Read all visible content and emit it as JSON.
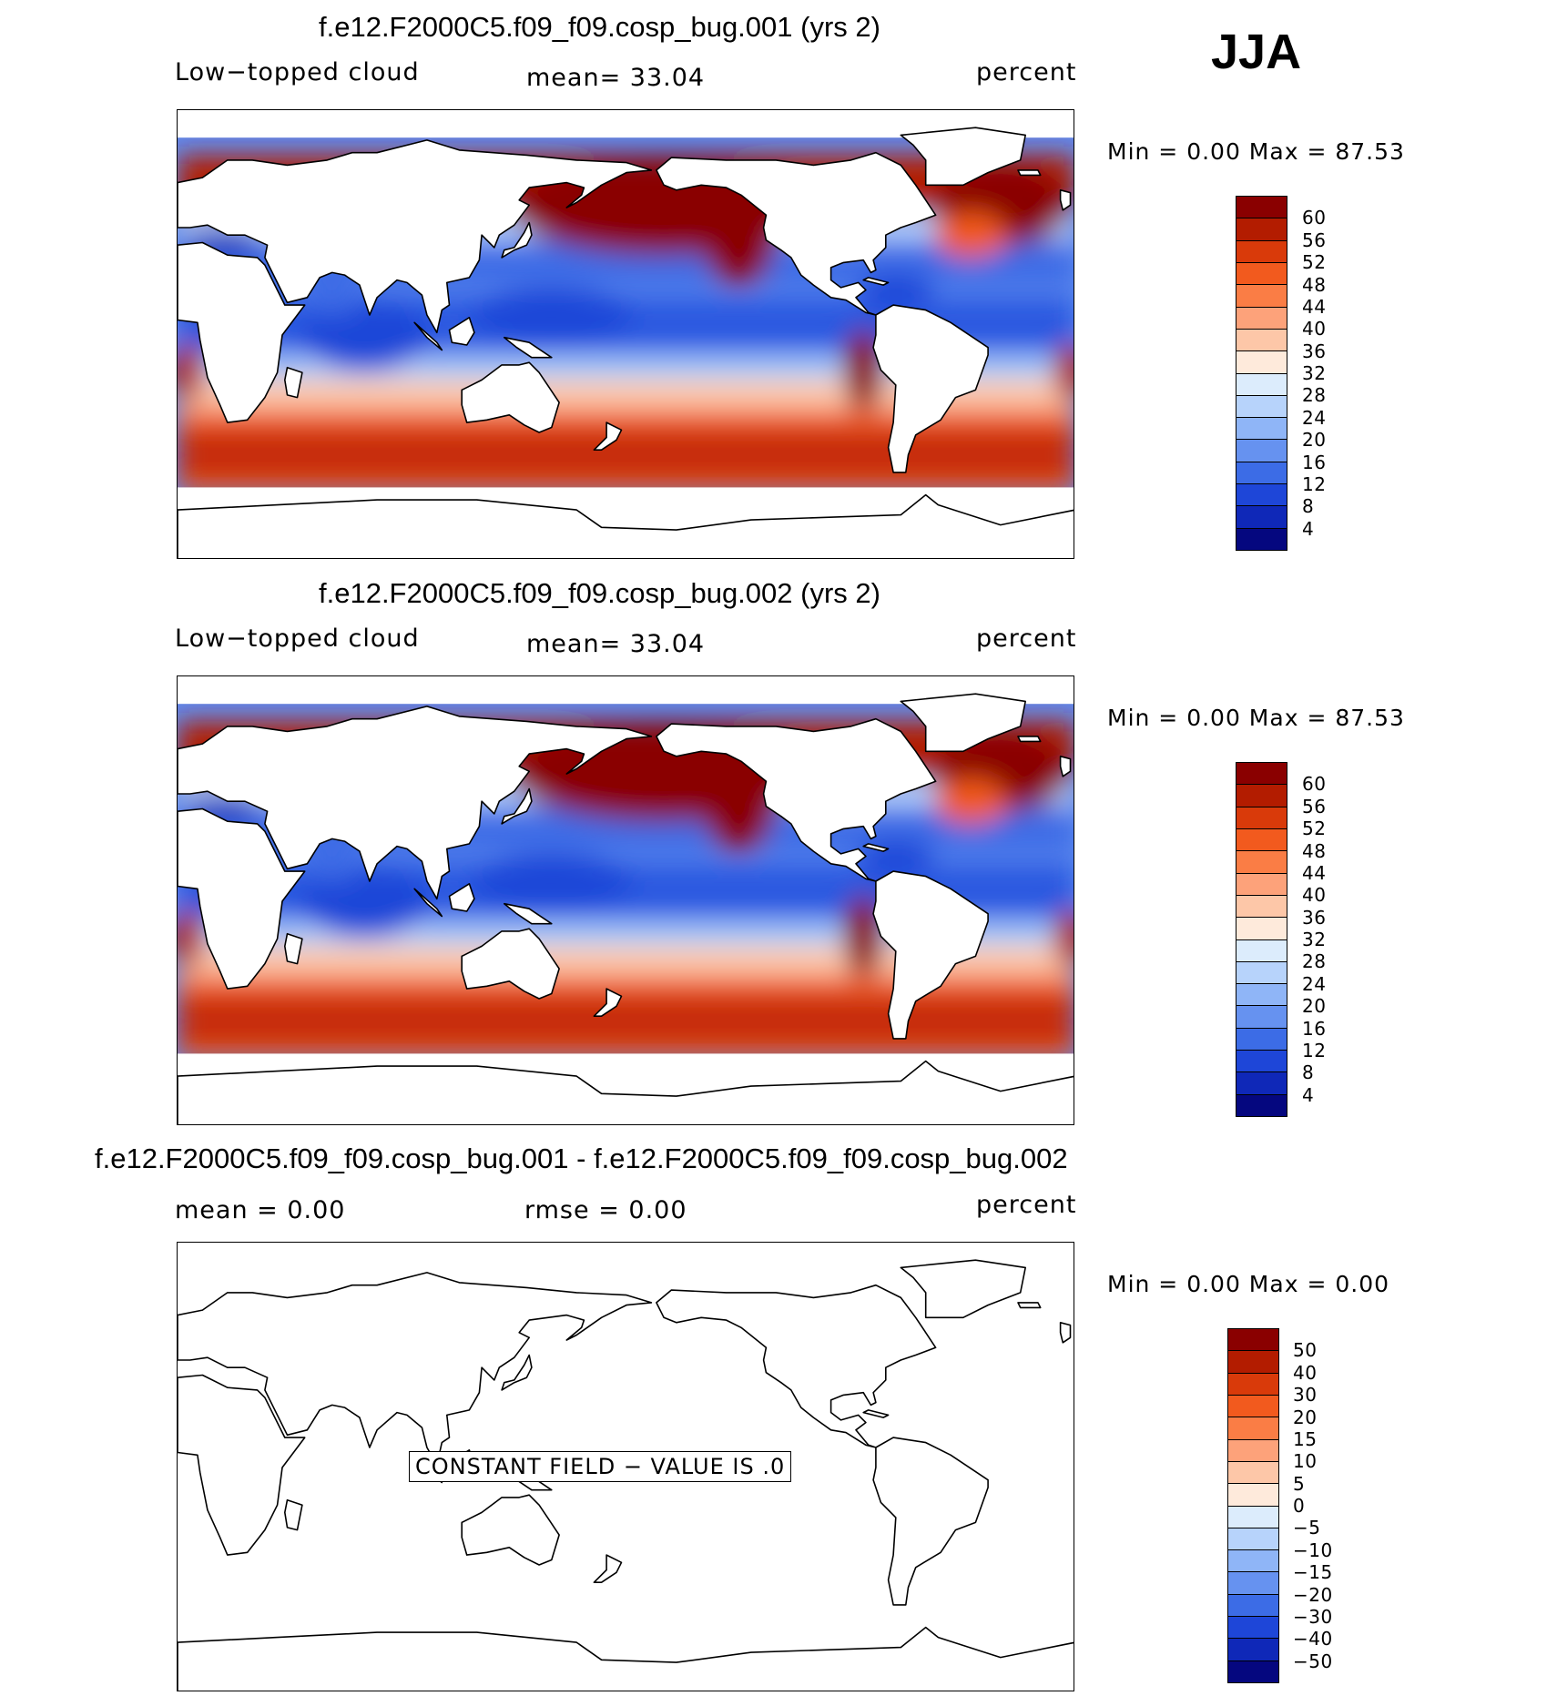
{
  "season": "JJA",
  "panels": [
    {
      "title": "f.e12.F2000C5.f09_f09.cosp_bug.001 (yrs 2)",
      "left_label": "Low−topped cloud",
      "center_label": "mean=   33.04",
      "right_label": "percent",
      "minmax": "Min  =     0.00 Max  =    87.53",
      "colorbar": {
        "labels": [
          "60",
          "56",
          "52",
          "48",
          "44",
          "40",
          "36",
          "32",
          "28",
          "24",
          "20",
          "16",
          "12",
          "8",
          "4"
        ],
        "colors": [
          "#8a0000",
          "#b31c00",
          "#d93a0a",
          "#f25a1e",
          "#fa7d45",
          "#fda27a",
          "#fdc7a8",
          "#feeadb",
          "#dcecfc",
          "#b7d3fb",
          "#8fb5f7",
          "#6692f0",
          "#3c6ce6",
          "#1e46d8",
          "#0f28b8",
          "#05077f"
        ]
      }
    },
    {
      "title": "f.e12.F2000C5.f09_f09.cosp_bug.002 (yrs 2)",
      "left_label": "Low−topped cloud",
      "center_label": "mean=   33.04",
      "right_label": "percent",
      "minmax": "Min  =     0.00 Max  =    87.53",
      "colorbar": {
        "labels": [
          "60",
          "56",
          "52",
          "48",
          "44",
          "40",
          "36",
          "32",
          "28",
          "24",
          "20",
          "16",
          "12",
          "8",
          "4"
        ],
        "colors": [
          "#8a0000",
          "#b31c00",
          "#d93a0a",
          "#f25a1e",
          "#fa7d45",
          "#fda27a",
          "#fdc7a8",
          "#feeadb",
          "#dcecfc",
          "#b7d3fb",
          "#8fb5f7",
          "#6692f0",
          "#3c6ce6",
          "#1e46d8",
          "#0f28b8",
          "#05077f"
        ]
      }
    },
    {
      "title": "f.e12.F2000C5.f09_f09.cosp_bug.001 - f.e12.F2000C5.f09_f09.cosp_bug.002",
      "left_label": "mean  =     0.00",
      "center_label": "rmse  =     0.00",
      "right_label": "percent",
      "minmax": "Min  =     0.00 Max  =     0.00",
      "constant_field": "CONSTANT FIELD − VALUE IS .0",
      "colorbar": {
        "labels": [
          "50",
          "40",
          "30",
          "20",
          "15",
          "10",
          "5",
          "0",
          "−5",
          "−10",
          "−15",
          "−20",
          "−30",
          "−40",
          "−50"
        ],
        "colors": [
          "#8a0000",
          "#b31c00",
          "#d93a0a",
          "#f25a1e",
          "#fa7d45",
          "#fda27a",
          "#fdc7a8",
          "#feeadb",
          "#dcecfc",
          "#b7d3fb",
          "#8fb5f7",
          "#6692f0",
          "#3c6ce6",
          "#1e46d8",
          "#0f28b8",
          "#05077f"
        ]
      }
    }
  ]
}
